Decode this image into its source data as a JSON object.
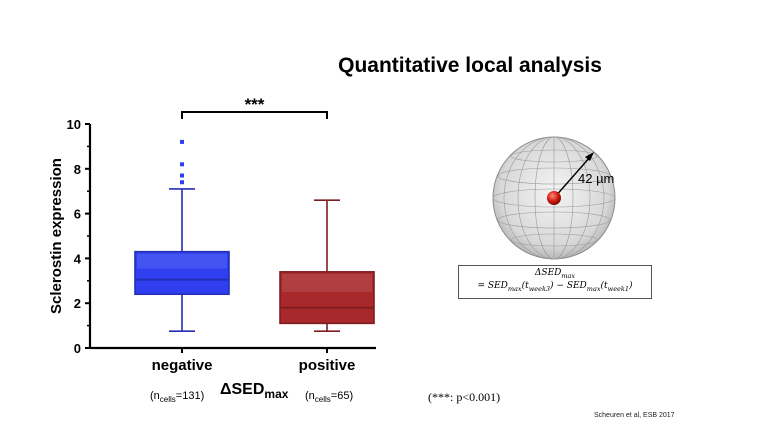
{
  "title": "Quantitative local analysis",
  "chart_data": {
    "type": "box",
    "ylabel": "Sclerostin expression",
    "ylim": [
      0,
      10
    ],
    "yticks": [
      "0",
      "2",
      "4",
      "6",
      "8",
      "10"
    ],
    "categories": [
      "negative",
      "positive"
    ],
    "colors": {
      "negative": "#2f3ff0",
      "positive": "#a8282c"
    },
    "series": [
      {
        "category": "negative",
        "whisker_low": 0.75,
        "q1": 2.4,
        "median": 3.05,
        "q3": 4.3,
        "whisker_high": 7.1,
        "outliers": [
          7.4,
          7.7,
          8.2,
          9.2
        ]
      },
      {
        "category": "positive",
        "whisker_low": 0.75,
        "q1": 1.1,
        "median": 1.8,
        "q3": 3.4,
        "whisker_high": 6.6,
        "outliers": []
      }
    ],
    "significance": "***"
  },
  "xaxis_title": {
    "main": "ΔSED",
    "sub": "max"
  },
  "ncells": [
    {
      "prefix": "(n",
      "sub": "cells",
      "suffix": "=131)"
    },
    {
      "prefix": "(n",
      "sub": "cells",
      "suffix": "=65)"
    }
  ],
  "p_note": "(***: p<0.001)",
  "sphere": {
    "radius_label": "42 µm"
  },
  "formula": {
    "line1": {
      "main": "ΔSED",
      "sub": "max"
    },
    "line2": {
      "a": "= SED",
      "a_sub": "max",
      "b": "(t",
      "b_sub": "week3",
      "c": ") − SED",
      "c_sub": "max",
      "d": "(t",
      "d_sub": "week1",
      "e": ")"
    }
  },
  "citation": "Scheuren et al, ESB 2017"
}
